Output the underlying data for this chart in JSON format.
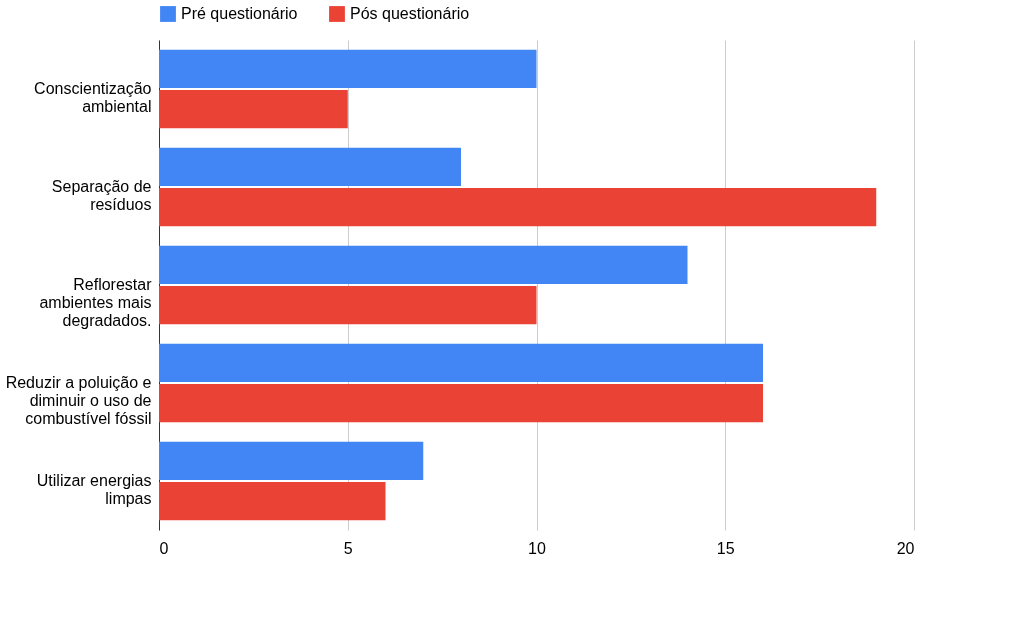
{
  "chart_data": {
    "type": "bar",
    "orientation": "horizontal",
    "categories": [
      "Conscientização ambiental",
      "Separação de resíduos",
      "Reflorestar ambientes mais degradados.",
      "Reduzir a poluição e diminuir o uso de combustível fóssil",
      "Utilizar energias limpas"
    ],
    "series": [
      {
        "name": "Pré questionário",
        "color": "#4285f4",
        "values": [
          10,
          8,
          14,
          16,
          7
        ]
      },
      {
        "name": "Pós questionário",
        "color": "#ea4335",
        "values": [
          5,
          19,
          10,
          16,
          6
        ]
      }
    ],
    "xlim": [
      0,
      20
    ],
    "xticks": [
      0,
      5,
      10,
      15,
      20
    ],
    "grid": "x",
    "legend": "top"
  }
}
